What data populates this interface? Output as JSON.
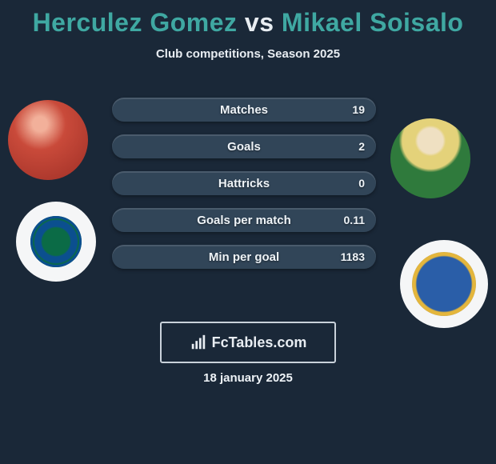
{
  "colors": {
    "background": "#1a2838",
    "title_player1": "#3fa8a2",
    "title_vs": "#e8edf2",
    "title_player2": "#3fa8a2",
    "bar_fill": "#314558",
    "text": "#eef3f7",
    "brand_border": "#c9d2db"
  },
  "title": {
    "player1": "Herculez Gomez",
    "vs": "vs",
    "player2": "Mikael Soisalo"
  },
  "subtitle": "Club competitions, Season 2025",
  "stats": [
    {
      "label": "Matches",
      "value": "19"
    },
    {
      "label": "Goals",
      "value": "2"
    },
    {
      "label": "Hattricks",
      "value": "0"
    },
    {
      "label": "Goals per match",
      "value": "0.11"
    },
    {
      "label": "Min per goal",
      "value": "1183"
    }
  ],
  "brand": "FcTables.com",
  "date": "18 january 2025"
}
